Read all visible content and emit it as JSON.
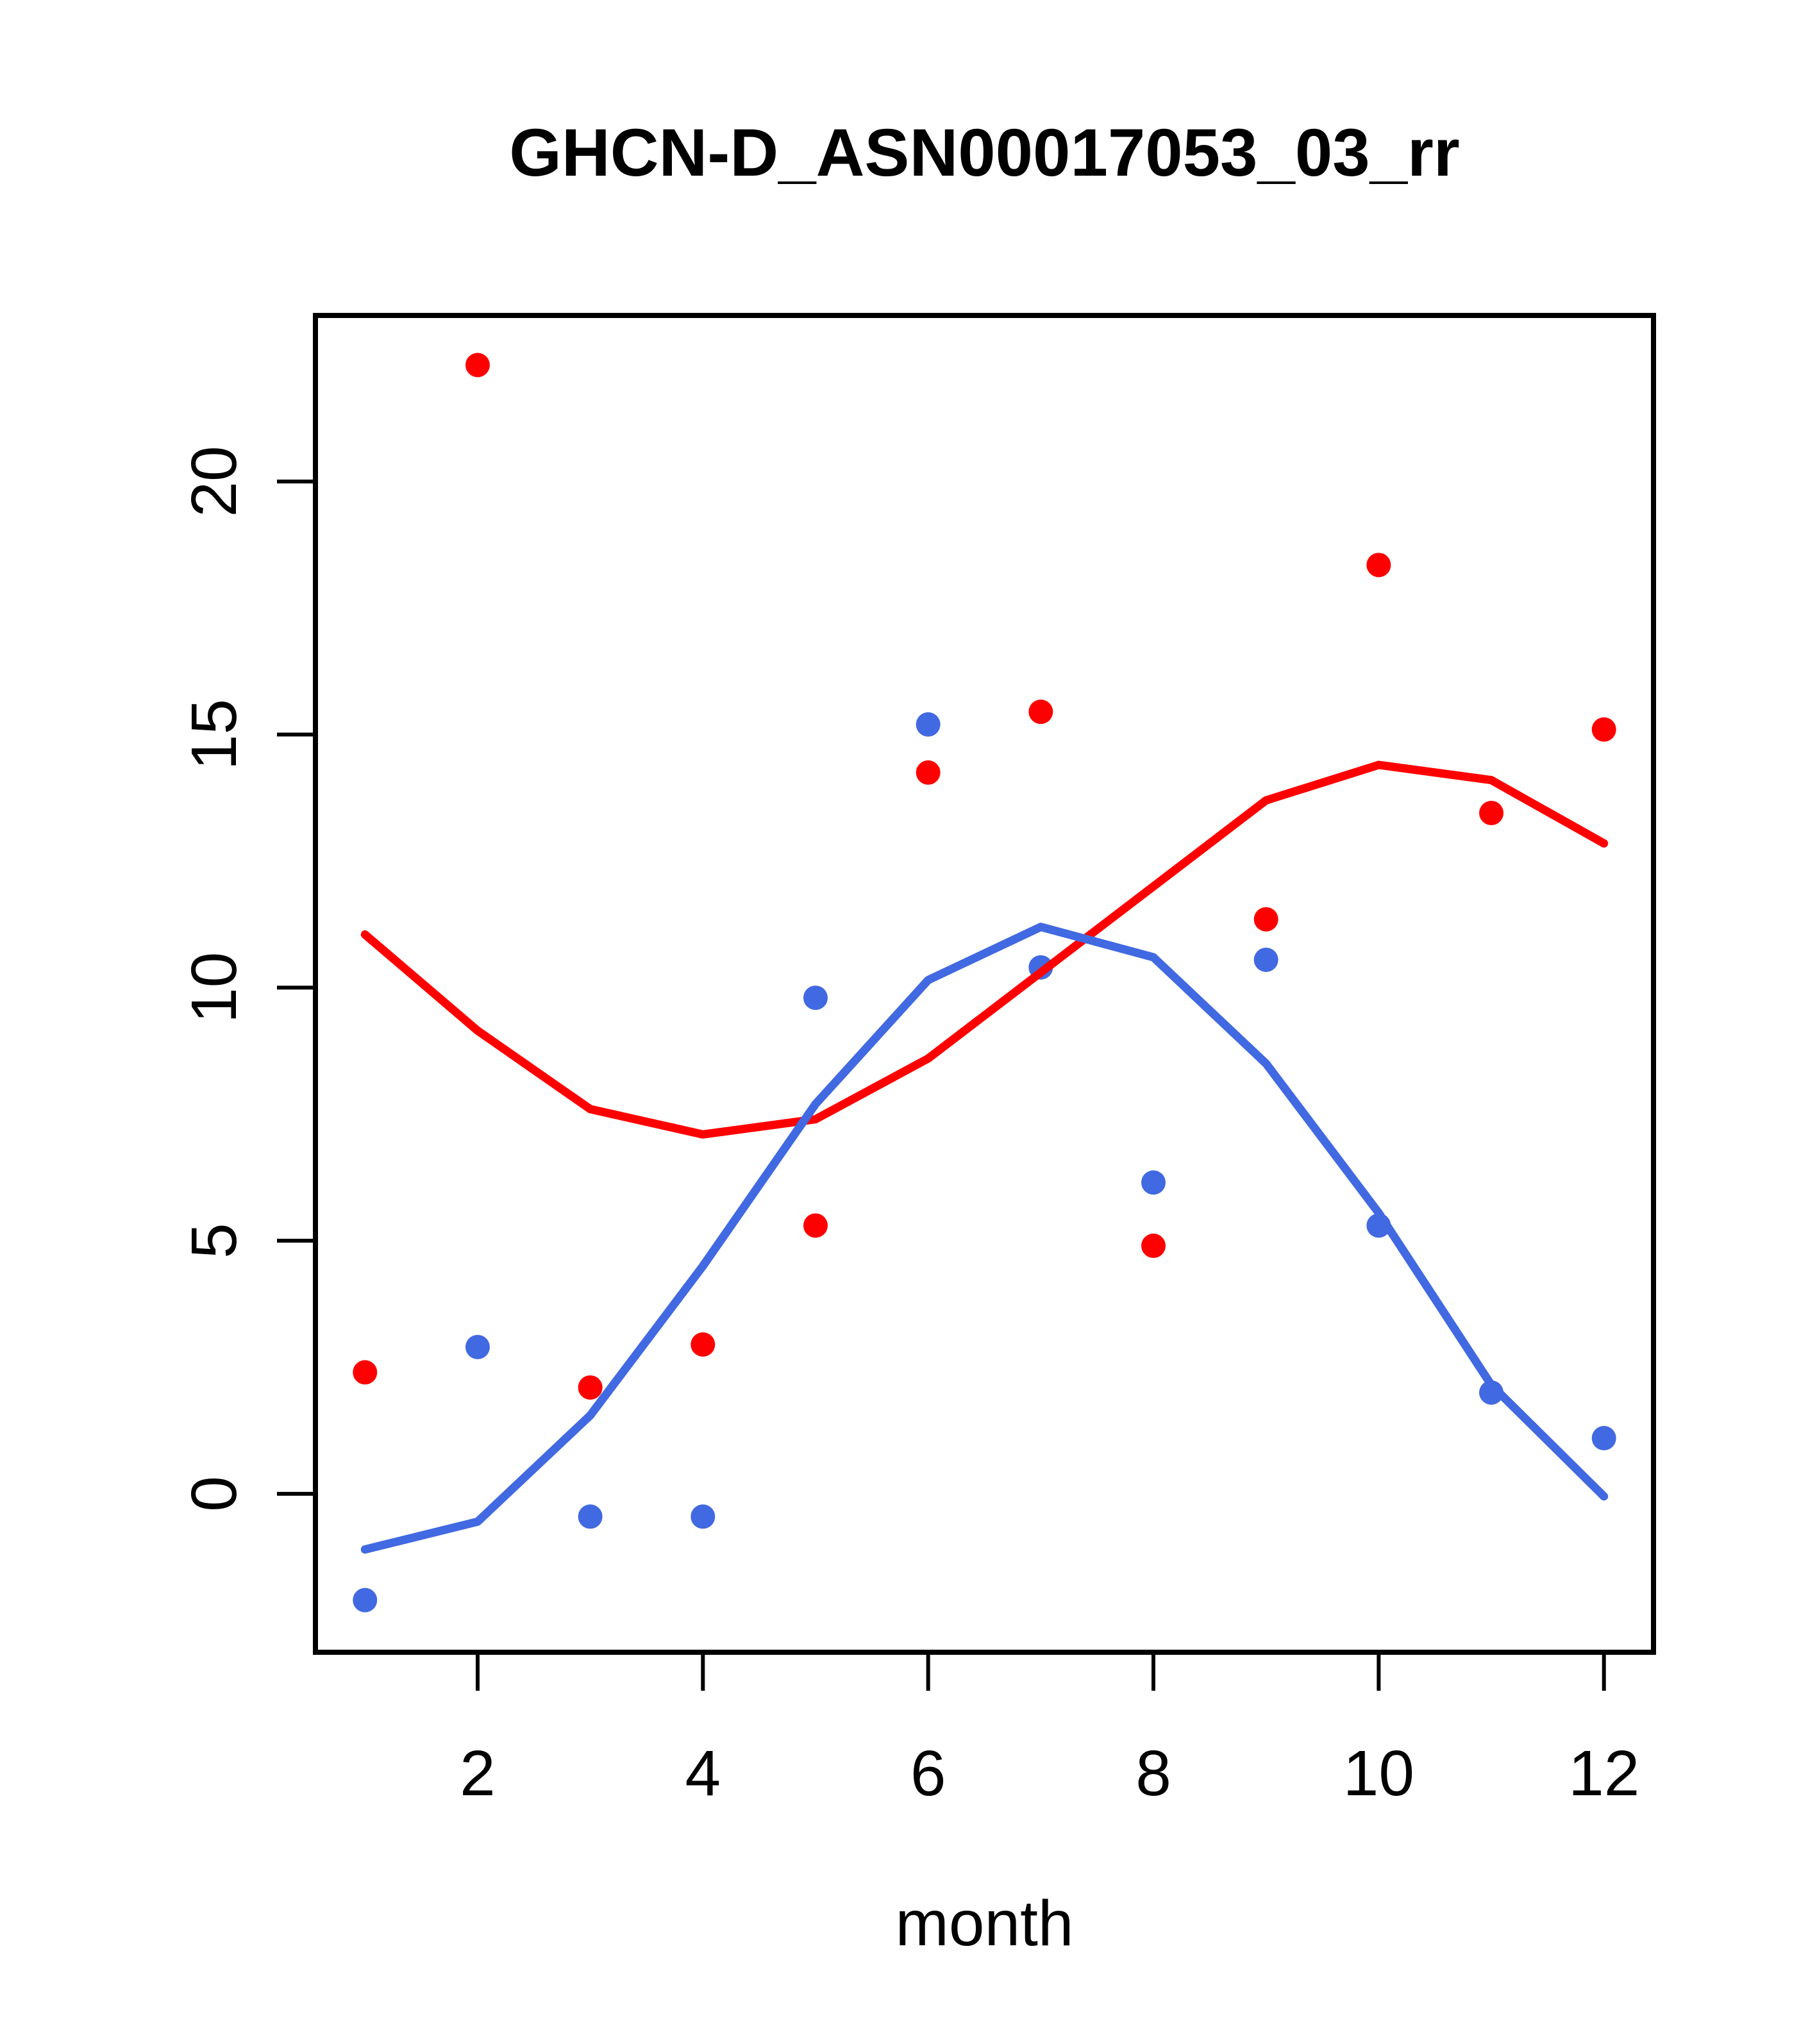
{
  "chart_data": {
    "type": "scatter",
    "title": "GHCN-D_ASN00017053_03_rr",
    "xlabel": "month",
    "ylabel": "",
    "x": [
      1,
      2,
      3,
      4,
      5,
      6,
      7,
      8,
      9,
      10,
      11,
      12
    ],
    "xticks": [
      2,
      4,
      6,
      8,
      10,
      12
    ],
    "yticks": [
      0,
      5,
      10,
      15,
      20
    ],
    "xlim": [
      0.56,
      12.44
    ],
    "ylim": [
      -3.13,
      23.28
    ],
    "grid": false,
    "legend": "none",
    "series": [
      {
        "name": "red-points",
        "kind": "points",
        "color": "#FF0000",
        "values": [
          2.4,
          22.3,
          2.1,
          2.95,
          5.3,
          14.25,
          15.45,
          4.9,
          11.35,
          18.35,
          13.45,
          15.1
        ]
      },
      {
        "name": "blue-points",
        "kind": "points",
        "color": "#4169E1",
        "values": [
          -2.1,
          2.9,
          -0.45,
          -0.45,
          9.8,
          15.2,
          10.4,
          6.15,
          10.55,
          5.3,
          2.0,
          1.1
        ]
      },
      {
        "name": "red-smooth-line",
        "kind": "line",
        "color": "#FF0000",
        "values": [
          11.05,
          9.15,
          7.6,
          7.1,
          7.4,
          8.6,
          10.3,
          12.0,
          13.7,
          14.4,
          14.1,
          12.85
        ]
      },
      {
        "name": "blue-smooth-line",
        "kind": "line",
        "color": "#4169E1",
        "values": [
          -1.1,
          -0.55,
          1.55,
          4.5,
          7.7,
          10.15,
          11.2,
          10.6,
          8.5,
          5.55,
          2.15,
          -0.05
        ]
      }
    ]
  },
  "colors": {
    "red": "#FF0000",
    "blue": "#4169E1",
    "axis": "#000000",
    "background": "#FFFFFF"
  }
}
